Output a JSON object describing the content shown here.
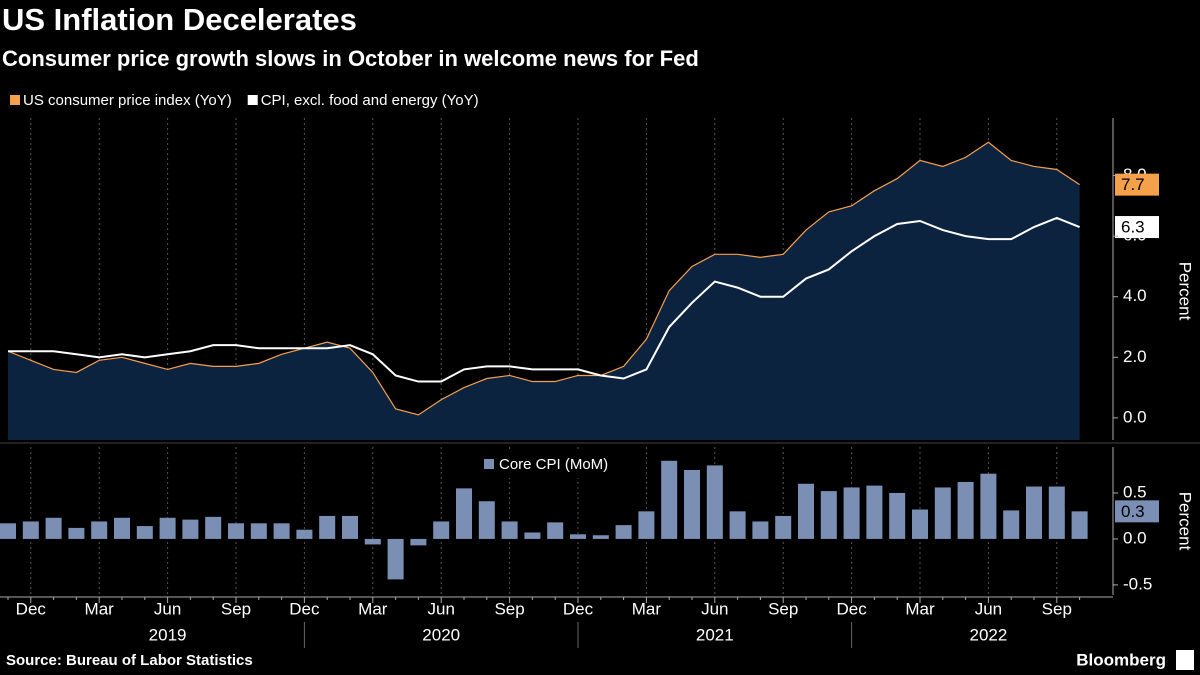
{
  "title": "US Inflation Decelerates",
  "subtitle": "Consumer price growth slows in October in welcome news for Fed",
  "source": "Source: Bureau of Labor Statistics",
  "brand": "Bloomberg",
  "chart_data": [
    {
      "type": "line",
      "y_label": "Percent",
      "area_color": "#0c2340",
      "ylim": [
        -0.73,
        9.9
      ],
      "yticks": [
        {
          "value": 0,
          "label": "0.0"
        },
        {
          "value": 2,
          "label": "2.0"
        },
        {
          "value": 4,
          "label": "4.0"
        },
        {
          "value": 6,
          "label": "6.0"
        },
        {
          "value": 8,
          "label": "8.0"
        }
      ],
      "series": [
        {
          "name": "US consumer price index (YoY)",
          "color": "#f5a04a",
          "values": [
            2.2,
            1.9,
            1.6,
            1.5,
            1.9,
            2.0,
            1.8,
            1.6,
            1.8,
            1.7,
            1.7,
            1.8,
            2.1,
            2.3,
            2.5,
            2.3,
            1.5,
            0.3,
            0.1,
            0.6,
            1.0,
            1.3,
            1.4,
            1.2,
            1.2,
            1.4,
            1.4,
            1.7,
            2.6,
            4.2,
            5.0,
            5.4,
            5.4,
            5.3,
            5.4,
            6.2,
            6.8,
            7.0,
            7.5,
            7.9,
            8.5,
            8.3,
            8.6,
            9.1,
            8.5,
            8.3,
            8.2,
            7.7
          ]
        },
        {
          "name": "CPI, excl. food and energy (YoY)",
          "color": "#ffffff",
          "values": [
            2.2,
            2.2,
            2.2,
            2.1,
            2.0,
            2.1,
            2.0,
            2.1,
            2.2,
            2.4,
            2.4,
            2.3,
            2.3,
            2.3,
            2.3,
            2.4,
            2.1,
            1.4,
            1.2,
            1.2,
            1.6,
            1.7,
            1.7,
            1.6,
            1.6,
            1.6,
            1.4,
            1.3,
            1.6,
            3.0,
            3.8,
            4.5,
            4.3,
            4.0,
            4.0,
            4.6,
            4.9,
            5.5,
            6.0,
            6.4,
            6.5,
            6.2,
            6.0,
            5.9,
            5.9,
            6.3,
            6.6,
            6.3
          ]
        }
      ]
    },
    {
      "type": "bar",
      "y_label": "Percent",
      "ylim": [
        -0.61,
        1.0
      ],
      "yticks": [
        {
          "value": -0.5,
          "label": "-0.5"
        },
        {
          "value": 0,
          "label": "0.0"
        },
        {
          "value": 0.5,
          "label": "0.5"
        }
      ],
      "categories": [
        null,
        "Dec",
        null,
        null,
        "Mar",
        null,
        null,
        "Jun",
        null,
        null,
        "Sep",
        null,
        null,
        "Dec",
        null,
        null,
        "Mar",
        null,
        null,
        "Jun",
        null,
        null,
        "Sep",
        null,
        null,
        "Dec",
        null,
        null,
        "Mar",
        null,
        null,
        "Jun",
        null,
        null,
        "Sep",
        null,
        null,
        "Dec",
        null,
        null,
        "Mar",
        null,
        null,
        "Jun",
        null,
        null,
        "Sep",
        null
      ],
      "years": [
        "2019",
        "2020",
        "2021",
        "2022"
      ],
      "series": [
        {
          "name": "Core CPI (MoM)",
          "color": "#7b8fb5",
          "values": [
            0.17,
            0.19,
            0.23,
            0.12,
            0.19,
            0.23,
            0.14,
            0.23,
            0.21,
            0.24,
            0.17,
            0.17,
            0.17,
            0.1,
            0.25,
            0.25,
            -0.06,
            -0.44,
            -0.07,
            0.19,
            0.55,
            0.41,
            0.19,
            0.07,
            0.18,
            0.05,
            0.04,
            0.15,
            0.3,
            0.85,
            0.75,
            0.8,
            0.3,
            0.19,
            0.25,
            0.6,
            0.52,
            0.56,
            0.58,
            0.5,
            0.32,
            0.56,
            0.62,
            0.71,
            0.31,
            0.57,
            0.57,
            0.3
          ]
        }
      ]
    }
  ]
}
